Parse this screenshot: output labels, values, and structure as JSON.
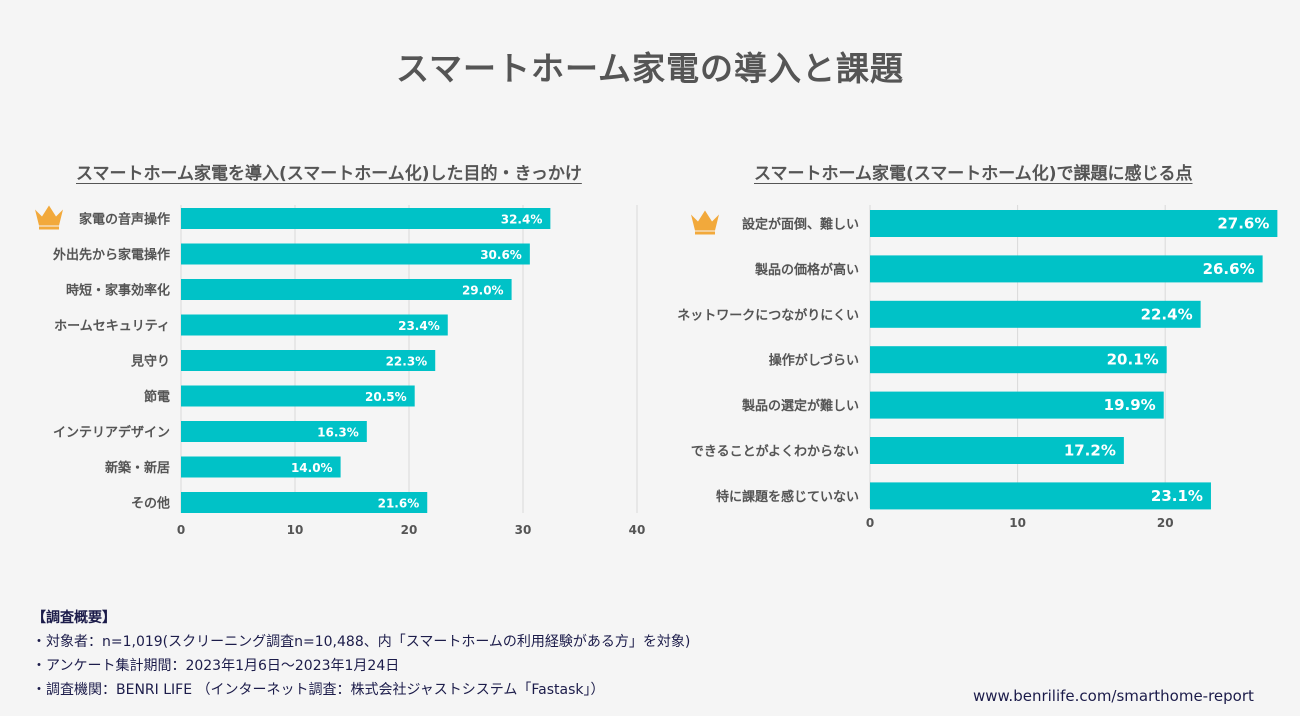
{
  "title": "スマートホーム家電の導入と課題",
  "colors": {
    "bar": "#00c2c7",
    "grid": "#d9d9d9",
    "text": "#555555",
    "crown": "#f2a93b"
  },
  "chart_data": [
    {
      "type": "bar",
      "orientation": "horizontal",
      "title": "スマートホーム家電を導入(スマートホーム化)した目的・きっかけ",
      "categories": [
        "家電の音声操作",
        "外出先から家電操作",
        "時短・家事効率化",
        "ホームセキュリティ",
        "見守り",
        "節電",
        "インテリアデザイン",
        "新築・新居",
        "その他"
      ],
      "values": [
        32.4,
        30.6,
        29.0,
        23.4,
        22.3,
        20.5,
        16.3,
        14.0,
        21.6
      ],
      "value_labels": [
        "32.4%",
        "30.6%",
        "29.0%",
        "23.4%",
        "22.3%",
        "20.5%",
        "16.3%",
        "14.0%",
        "21.6%"
      ],
      "ticks": [
        "0",
        "10",
        "20",
        "30",
        "40"
      ],
      "xlim": [
        0,
        40
      ],
      "highlight_index": 0,
      "highlight_icon": "crown-icon"
    },
    {
      "type": "bar",
      "orientation": "horizontal",
      "title": "スマートホーム家電(スマートホーム化)で課題に感じる点",
      "categories": [
        "設定が面倒、難しい",
        "製品の価格が高い",
        "ネットワークにつながりにくい",
        "操作がしづらい",
        "製品の選定が難しい",
        "できることがよくわからない",
        "特に課題を感じていない"
      ],
      "values": [
        27.6,
        26.6,
        22.4,
        20.1,
        19.9,
        17.2,
        23.1
      ],
      "value_labels": [
        "27.6%",
        "26.6%",
        "22.4%",
        "20.1%",
        "19.9%",
        "17.2%",
        "23.1%"
      ],
      "ticks": [
        "0",
        "10",
        "20"
      ],
      "xlim": [
        0,
        27.6
      ],
      "highlight_index": 0,
      "highlight_icon": "crown-icon"
    }
  ],
  "survey": {
    "heading": "【調査概要】",
    "lines": [
      "・対象者：n=1,019(スクリーニング調査n=10,488、内「スマートホームの利用経験がある方」を対象)",
      "・アンケート集計期間：2023年1月6日〜2023年1月24日",
      "・調査機関：BENRI LIFE （インターネット調査：株式会社ジャストシステム「Fastask」）"
    ]
  },
  "footer_url": "www.benrilife.com/smarthome-report"
}
